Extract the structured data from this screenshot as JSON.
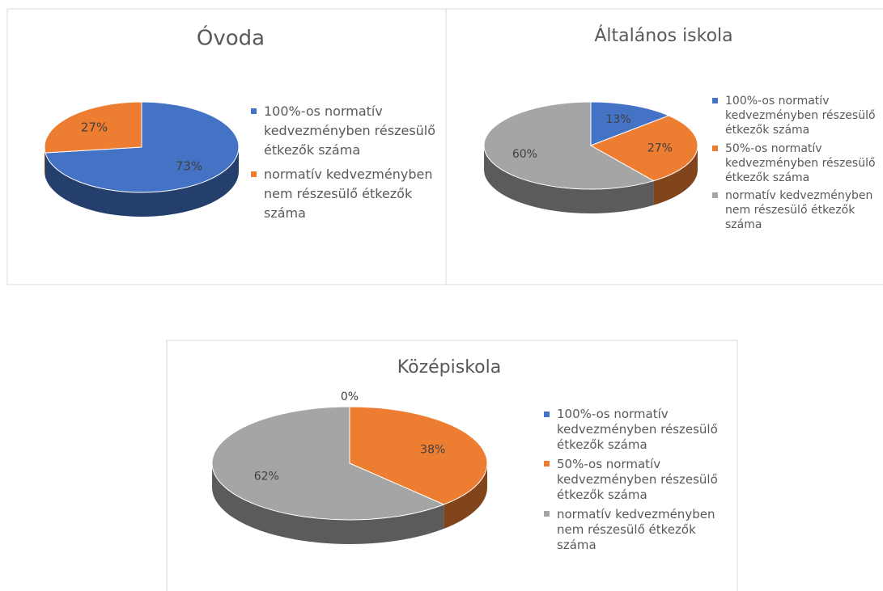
{
  "chart_data": [
    {
      "type": "pie",
      "title": "Óvoda",
      "categories": [
        "100%-os normatív kedvezményben részesülő étkezők száma",
        "normatív kedvezményben nem részesülő étkezők száma"
      ],
      "values": [
        73,
        27
      ],
      "value_labels": [
        "73%",
        "27%"
      ],
      "colors": [
        "#4472c4",
        "#ed7d31"
      ],
      "legend": "right"
    },
    {
      "type": "pie",
      "title": "Általános iskola",
      "categories": [
        "100%-os normatív kedvezményben részesülő étkezők száma",
        "50%-os normatív kedvezményben részesülő étkezők száma",
        "normatív kedvezményben nem részesülő étkezők száma"
      ],
      "values": [
        13,
        27,
        60
      ],
      "value_labels": [
        "13%",
        "27%",
        "60%"
      ],
      "colors": [
        "#4472c4",
        "#ed7d31",
        "#a5a5a5"
      ],
      "legend": "right"
    },
    {
      "type": "pie",
      "title": "Középiskola",
      "categories": [
        "100%-os normatív kedvezményben részesülő étkezők száma",
        "50%-os normatív kedvezményben részesülő étkezők száma",
        "normatív kedvezményben nem részesülő étkezők száma"
      ],
      "values": [
        0,
        38,
        62
      ],
      "value_labels": [
        "0%",
        "38%",
        "62%"
      ],
      "colors": [
        "#4472c4",
        "#ed7d31",
        "#a5a5a5"
      ],
      "legend": "right"
    }
  ]
}
